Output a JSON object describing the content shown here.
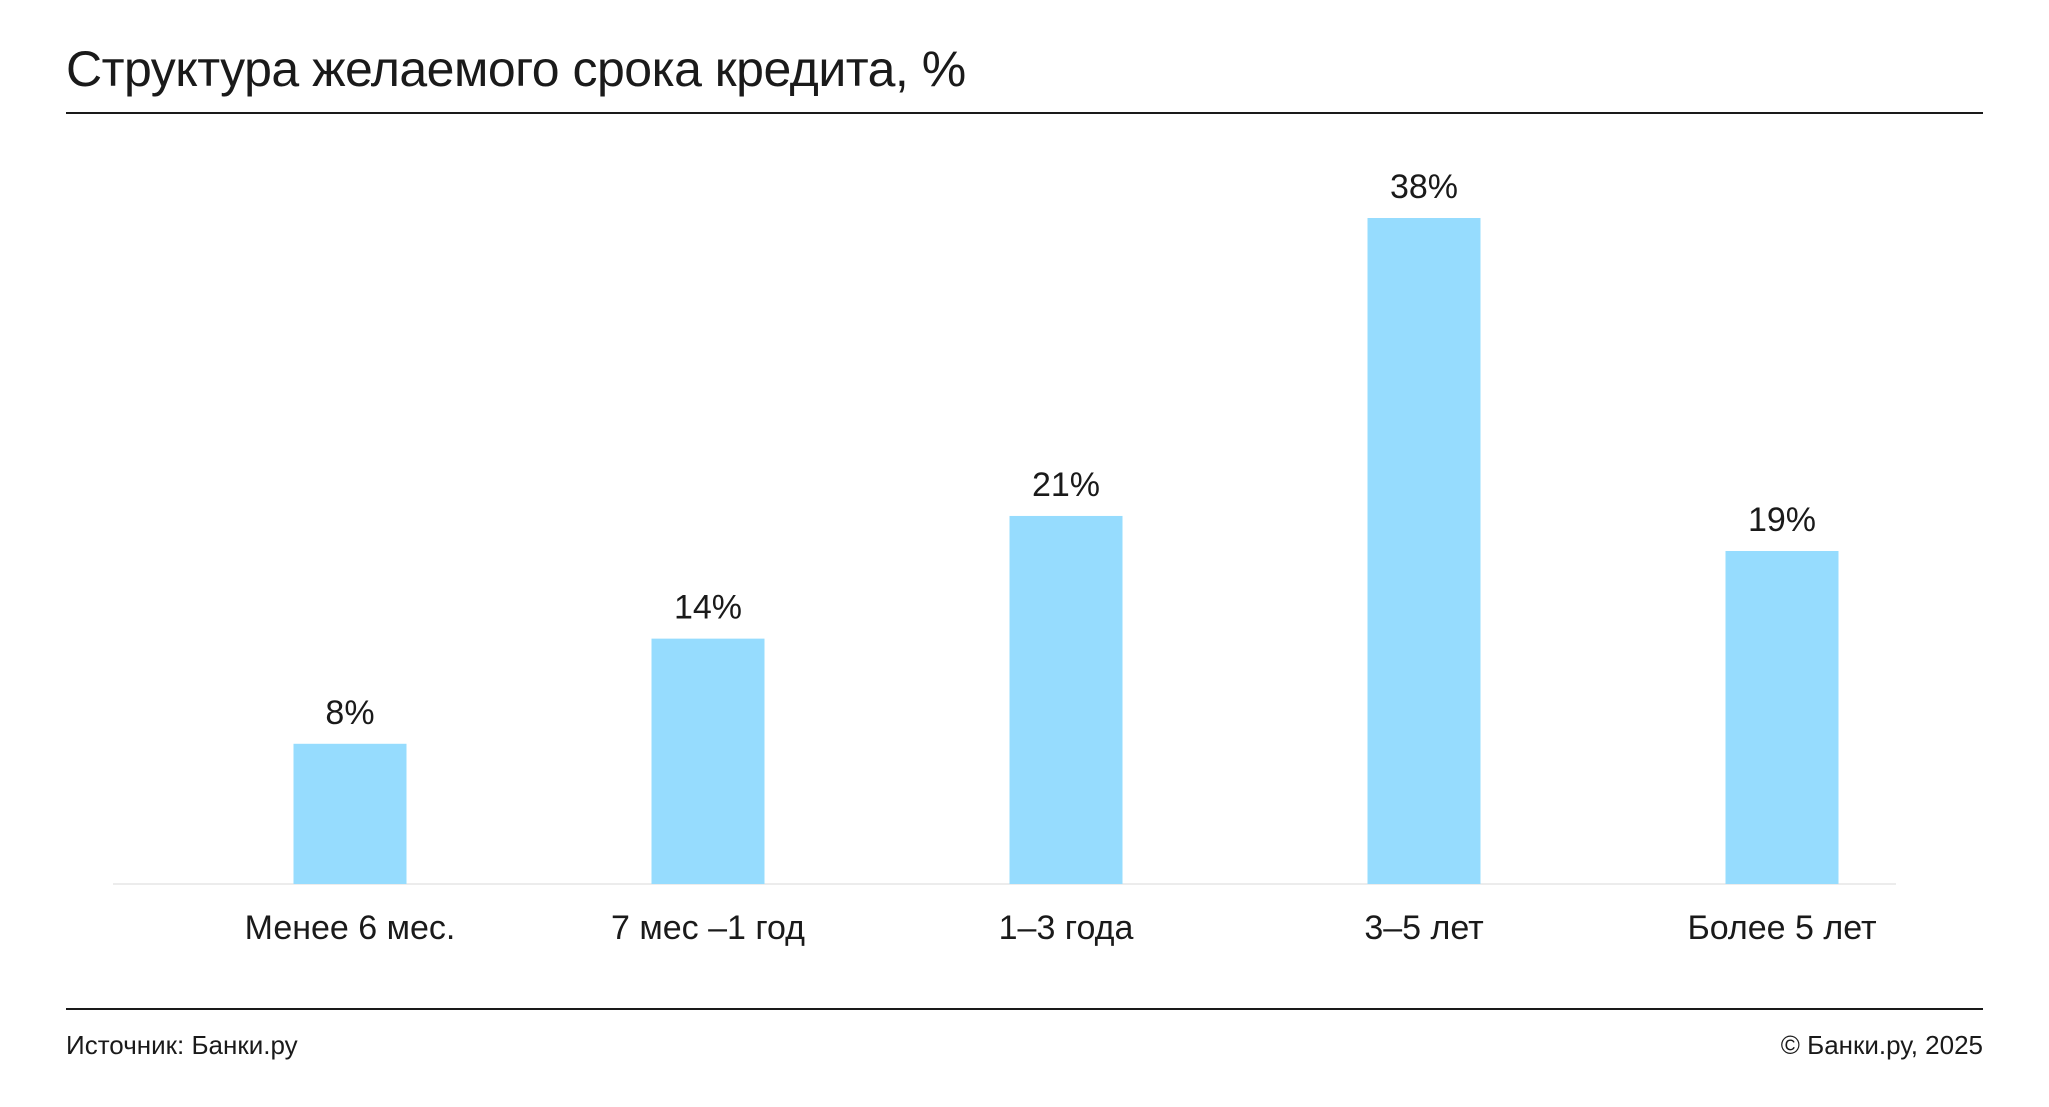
{
  "header": {
    "title": "Структура желаемого срока кредита, %"
  },
  "chart_data": {
    "type": "bar",
    "title": "Структура желаемого срока кредита, %",
    "xlabel": "",
    "ylabel": "",
    "categories": [
      "Менее 6 мес.",
      "7 мес –1 год",
      "1–3 года",
      "3–5 лет",
      "Более 5 лет"
    ],
    "values": [
      8,
      14,
      21,
      38,
      19
    ],
    "value_labels": [
      "8%",
      "14%",
      "21%",
      "38%",
      "19%"
    ],
    "ylim": [
      0,
      38
    ],
    "grid": false,
    "legend": "none",
    "colors": {
      "bar": "#96dcfe",
      "text": "#1a1a1a",
      "baseline": "#e6e6e6"
    }
  },
  "footer": {
    "source": "Источник: Банки.ру",
    "copyright": "© Банки.ру, 2025"
  }
}
